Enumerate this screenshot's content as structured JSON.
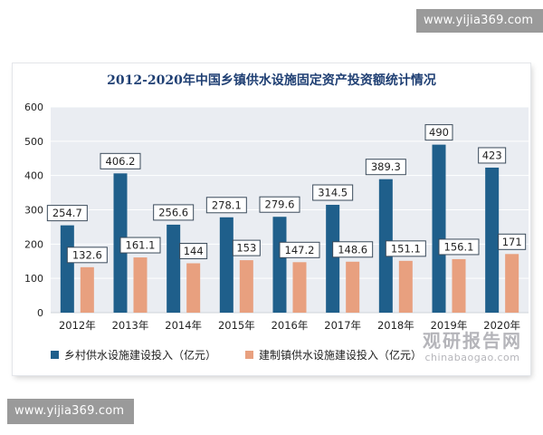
{
  "watermark_top": "www.yijia369.com",
  "watermark_bottom": "www.yijia369.com",
  "brand": {
    "main": "观研报告网",
    "sub": "chinabaogao.com"
  },
  "chart_data": {
    "type": "bar",
    "title": "2012-2020年中国乡镇供水设施固定资产投资额统计情况",
    "categories": [
      "2012年",
      "2013年",
      "2014年",
      "2015年",
      "2016年",
      "2017年",
      "2018年",
      "2019年",
      "2020年"
    ],
    "series": [
      {
        "name": "乡村供水设施建设投入（亿元）",
        "color": "#1f5f8b",
        "values": [
          254.7,
          406.2,
          256.6,
          278.1,
          279.6,
          314.5,
          389.3,
          490,
          423
        ]
      },
      {
        "name": "建制镇供水设施建设投入（亿元）",
        "color": "#e8a07f",
        "values": [
          132.6,
          161.1,
          144,
          153,
          147.2,
          148.6,
          151.1,
          156.1,
          171
        ]
      }
    ],
    "yticks": [
      0,
      100,
      200,
      300,
      400,
      500,
      600
    ],
    "ylim": [
      0,
      600
    ],
    "grid": true,
    "legend": "bottom-left",
    "plot_background": "#eaedf2"
  }
}
